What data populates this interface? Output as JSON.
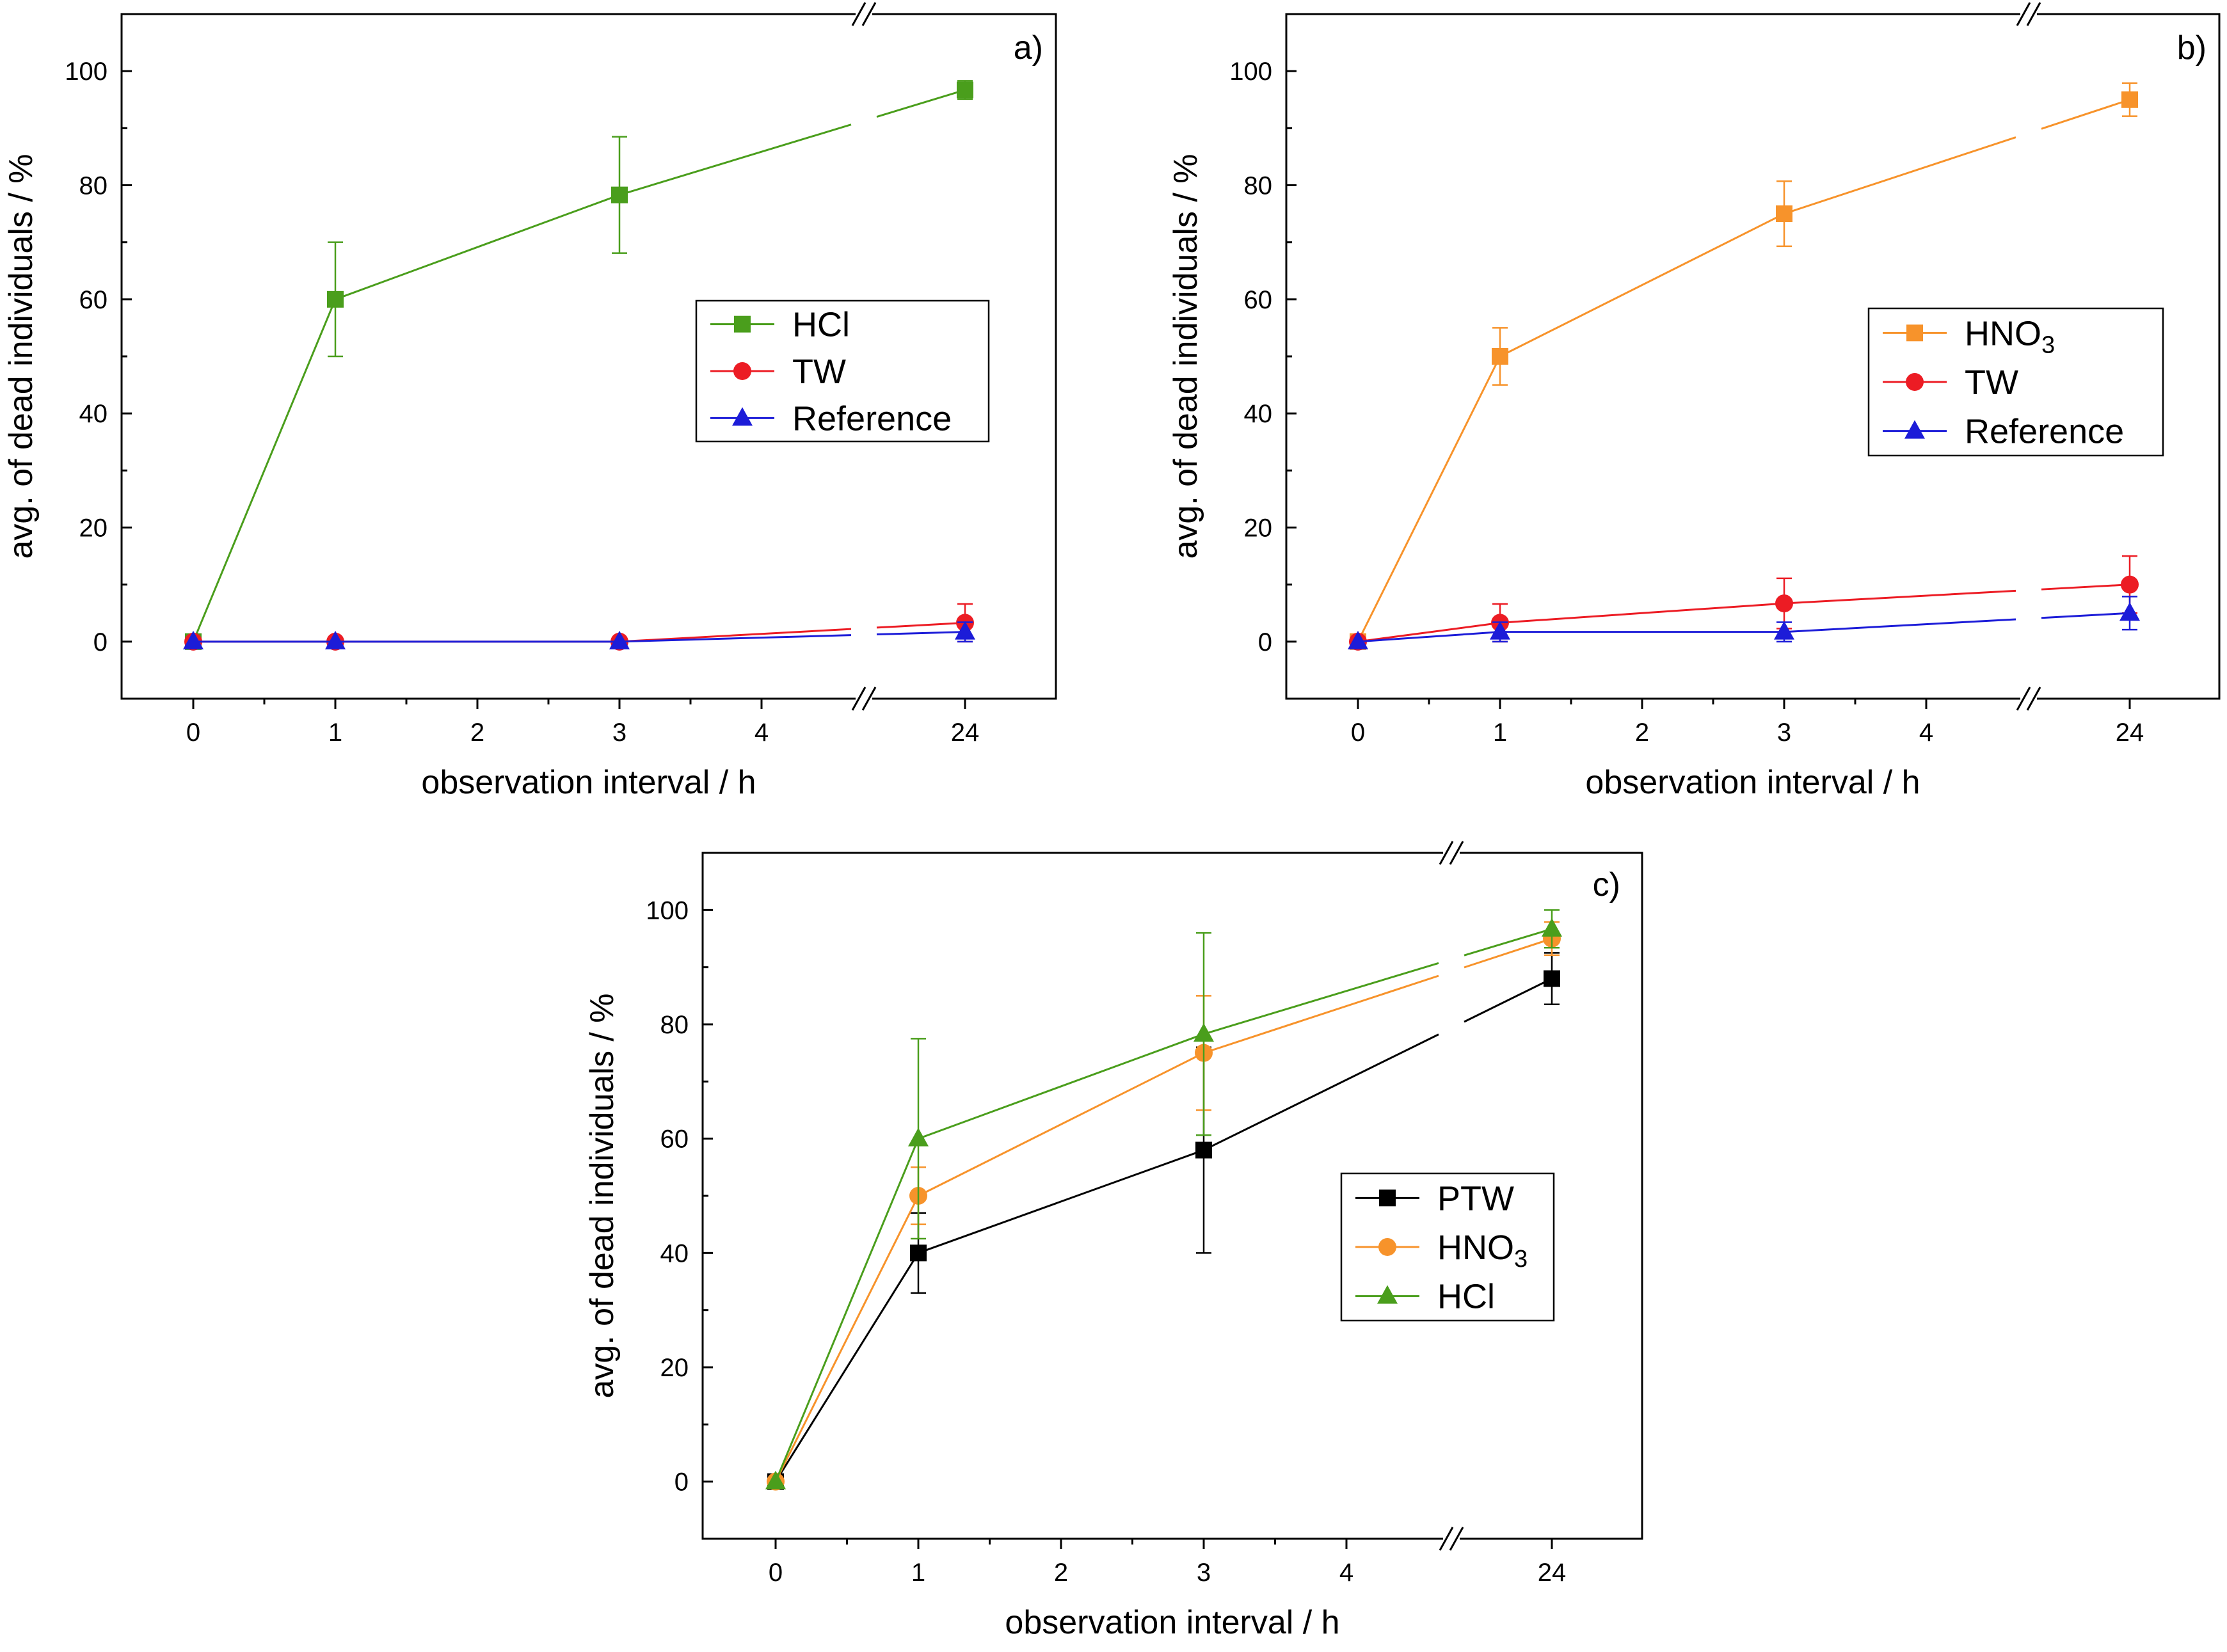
{
  "colors": {
    "HCl": "#4a9e1c",
    "HNO3": "#f7932b",
    "TW": "#ec1c24",
    "Reference": "#1c1cd8",
    "PTW": "#000000"
  },
  "chart_data": [
    {
      "panel": "a)",
      "type": "line",
      "categories": [
        "0",
        "1",
        "2",
        "3",
        "4",
        "24"
      ],
      "x_breaks": [
        "4",
        "24"
      ],
      "xlabel": "observation interval / h",
      "ylabel": "avg. of dead individuals / %",
      "ylim": [
        -10,
        110
      ],
      "yticks": [
        "0",
        "20",
        "40",
        "60",
        "80",
        "100"
      ],
      "legend_position": "right-middle",
      "series": [
        {
          "key": "HCl",
          "name": "HCl",
          "color_key": "HCl",
          "marker": "square",
          "points": [
            {
              "x": "0",
              "y": 0,
              "err": 0
            },
            {
              "x": "1",
              "y": 60,
              "err": 10
            },
            {
              "x": "3",
              "y": 78.3,
              "err": 10.2
            },
            {
              "x": "24",
              "y": 96.7,
              "err": 1.6
            }
          ]
        },
        {
          "key": "TW",
          "name": "TW",
          "color_key": "TW",
          "marker": "circle",
          "points": [
            {
              "x": "0",
              "y": 0,
              "err": 0
            },
            {
              "x": "1",
              "y": 0,
              "err": 0
            },
            {
              "x": "3",
              "y": 0,
              "err": 0
            },
            {
              "x": "24",
              "y": 3.3,
              "err": 3.3
            }
          ]
        },
        {
          "key": "Reference",
          "name": "Reference",
          "color_key": "Reference",
          "marker": "triangle",
          "points": [
            {
              "x": "0",
              "y": 0,
              "err": 0
            },
            {
              "x": "1",
              "y": 0,
              "err": 0
            },
            {
              "x": "3",
              "y": 0,
              "err": 0
            },
            {
              "x": "24",
              "y": 1.7,
              "err": 1.7
            }
          ]
        }
      ]
    },
    {
      "panel": "b)",
      "type": "line",
      "categories": [
        "0",
        "1",
        "2",
        "3",
        "4",
        "24"
      ],
      "x_breaks": [
        "4",
        "24"
      ],
      "xlabel": "observation interval / h",
      "ylabel": "avg. of dead individuals / %",
      "ylim": [
        -10,
        110
      ],
      "yticks": [
        "0",
        "20",
        "40",
        "60",
        "80",
        "100"
      ],
      "legend_position": "right-middle",
      "series": [
        {
          "key": "HNO3",
          "name": "HNO",
          "subscript": "3",
          "color_key": "HNO3",
          "marker": "square",
          "points": [
            {
              "x": "0",
              "y": 0,
              "err": 0
            },
            {
              "x": "1",
              "y": 50,
              "err": 5
            },
            {
              "x": "3",
              "y": 75,
              "err": 5.7
            },
            {
              "x": "24",
              "y": 95,
              "err": 2.9
            }
          ]
        },
        {
          "key": "TW",
          "name": "TW",
          "color_key": "TW",
          "marker": "circle",
          "points": [
            {
              "x": "0",
              "y": 0,
              "err": 0
            },
            {
              "x": "1",
              "y": 3.3,
              "err": 3.3
            },
            {
              "x": "3",
              "y": 6.7,
              "err": 4.4
            },
            {
              "x": "24",
              "y": 10,
              "err": 5
            }
          ]
        },
        {
          "key": "Reference",
          "name": "Reference",
          "color_key": "Reference",
          "marker": "triangle",
          "points": [
            {
              "x": "0",
              "y": 0,
              "err": 0
            },
            {
              "x": "1",
              "y": 1.7,
              "err": 1.7
            },
            {
              "x": "3",
              "y": 1.7,
              "err": 1.7
            },
            {
              "x": "24",
              "y": 5,
              "err": 2.9
            }
          ]
        }
      ]
    },
    {
      "panel": "c)",
      "type": "line",
      "categories": [
        "0",
        "1",
        "2",
        "3",
        "4",
        "24"
      ],
      "x_breaks": [
        "4",
        "24"
      ],
      "xlabel": "observation interval / h",
      "ylabel": "avg. of dead individuals / %",
      "ylim": [
        -10,
        110
      ],
      "yticks": [
        "0",
        "20",
        "40",
        "60",
        "80",
        "100"
      ],
      "legend_position": "right-middle",
      "series": [
        {
          "key": "PTW",
          "name": "PTW",
          "color_key": "PTW",
          "marker": "square",
          "points": [
            {
              "x": "0",
              "y": 0,
              "err": 0
            },
            {
              "x": "1",
              "y": 40,
              "err": 7
            },
            {
              "x": "3",
              "y": 58,
              "err": 18
            },
            {
              "x": "24",
              "y": 88,
              "err": 4.5
            }
          ]
        },
        {
          "key": "HNO3",
          "name": "HNO",
          "subscript": "3",
          "color_key": "HNO3",
          "marker": "circle",
          "points": [
            {
              "x": "0",
              "y": 0,
              "err": 0
            },
            {
              "x": "1",
              "y": 50,
              "err": 5
            },
            {
              "x": "3",
              "y": 75,
              "err": 10
            },
            {
              "x": "24",
              "y": 95,
              "err": 2.9
            }
          ]
        },
        {
          "key": "HCl",
          "name": "HCl",
          "color_key": "HCl",
          "marker": "triangle",
          "points": [
            {
              "x": "0",
              "y": 0,
              "err": 0
            },
            {
              "x": "1",
              "y": 60,
              "err": 17.5
            },
            {
              "x": "3",
              "y": 78.3,
              "err": 17.7
            },
            {
              "x": "24",
              "y": 96.7,
              "err": 3.3
            }
          ]
        }
      ]
    }
  ]
}
